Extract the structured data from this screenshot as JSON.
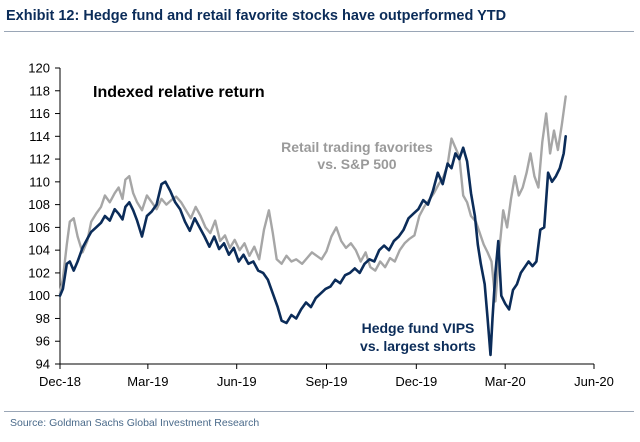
{
  "header": {
    "title": "Exhibit 12: Hedge fund and retail favorite stocks have outperformed YTD"
  },
  "footer": {
    "source": "Source: Goldman Sachs Global Investment Research"
  },
  "chart_data": {
    "type": "line",
    "title": "Indexed relative return",
    "xlabel": "",
    "ylabel": "",
    "ylim": [
      94,
      120
    ],
    "yticks": [
      94,
      96,
      98,
      100,
      102,
      104,
      106,
      108,
      110,
      112,
      114,
      116,
      118,
      120
    ],
    "xlim": [
      "2018-12-31",
      "2020-06-30"
    ],
    "xticks": [
      {
        "label": "Dec-18",
        "date": "2018-12-31"
      },
      {
        "label": "Mar-19",
        "date": "2019-03-31"
      },
      {
        "label": "Jun-19",
        "date": "2019-06-30"
      },
      {
        "label": "Sep-19",
        "date": "2019-09-30"
      },
      {
        "label": "Dec-19",
        "date": "2019-12-31"
      },
      {
        "label": "Mar-20",
        "date": "2020-03-31"
      },
      {
        "label": "Jun-20",
        "date": "2020-06-30"
      }
    ],
    "grid": false,
    "annotations": [
      {
        "series": "retail",
        "lines": [
          "Retail trading favorites",
          "vs. S&P 500"
        ]
      },
      {
        "series": "hedge",
        "lines": [
          "Hedge fund VIPS",
          "vs. largest shorts"
        ]
      }
    ],
    "colors": {
      "retail": "#a6a6a6",
      "hedge": "#0b2c59"
    },
    "series": [
      {
        "key": "retail",
        "points": [
          [
            "2018-12-31",
            100.2
          ],
          [
            "2019-01-03",
            101.5
          ],
          [
            "2019-01-07",
            104.5
          ],
          [
            "2019-01-10",
            106.5
          ],
          [
            "2019-01-14",
            106.8
          ],
          [
            "2019-01-18",
            105.2
          ],
          [
            "2019-01-23",
            103.8
          ],
          [
            "2019-01-28",
            104.8
          ],
          [
            "2019-02-01",
            106.5
          ],
          [
            "2019-02-06",
            107.2
          ],
          [
            "2019-02-11",
            107.8
          ],
          [
            "2019-02-15",
            108.8
          ],
          [
            "2019-02-20",
            108.2
          ],
          [
            "2019-02-25",
            109.0
          ],
          [
            "2019-03-01",
            109.5
          ],
          [
            "2019-03-05",
            108.5
          ],
          [
            "2019-03-08",
            110.2
          ],
          [
            "2019-03-12",
            110.5
          ],
          [
            "2019-03-16",
            109.0
          ],
          [
            "2019-03-20",
            108.2
          ],
          [
            "2019-03-25",
            107.5
          ],
          [
            "2019-03-30",
            108.8
          ],
          [
            "2019-04-04",
            108.2
          ],
          [
            "2019-04-09",
            107.6
          ],
          [
            "2019-04-14",
            108.5
          ],
          [
            "2019-04-19",
            108.0
          ],
          [
            "2019-04-24",
            108.4
          ],
          [
            "2019-04-29",
            108.7
          ],
          [
            "2019-05-04",
            108.2
          ],
          [
            "2019-05-09",
            107.5
          ],
          [
            "2019-05-14",
            106.8
          ],
          [
            "2019-05-19",
            107.8
          ],
          [
            "2019-05-24",
            107.0
          ],
          [
            "2019-05-29",
            106.0
          ],
          [
            "2019-06-03",
            105.5
          ],
          [
            "2019-06-08",
            106.6
          ],
          [
            "2019-06-13",
            104.8
          ],
          [
            "2019-06-18",
            105.3
          ],
          [
            "2019-06-23",
            104.2
          ],
          [
            "2019-06-28",
            104.9
          ],
          [
            "2019-07-03",
            104.0
          ],
          [
            "2019-07-08",
            104.6
          ],
          [
            "2019-07-13",
            103.5
          ],
          [
            "2019-07-18",
            104.3
          ],
          [
            "2019-07-23",
            103.2
          ],
          [
            "2019-07-28",
            105.8
          ],
          [
            "2019-08-02",
            107.5
          ],
          [
            "2019-08-06",
            105.5
          ],
          [
            "2019-08-10",
            103.2
          ],
          [
            "2019-08-15",
            102.8
          ],
          [
            "2019-08-20",
            103.5
          ],
          [
            "2019-08-25",
            103.0
          ],
          [
            "2019-08-30",
            103.2
          ],
          [
            "2019-09-05",
            102.8
          ],
          [
            "2019-09-10",
            103.3
          ],
          [
            "2019-09-15",
            103.8
          ],
          [
            "2019-09-20",
            103.5
          ],
          [
            "2019-09-25",
            103.2
          ],
          [
            "2019-09-30",
            103.9
          ],
          [
            "2019-10-05",
            105.2
          ],
          [
            "2019-10-10",
            106.0
          ],
          [
            "2019-10-15",
            104.8
          ],
          [
            "2019-10-20",
            104.2
          ],
          [
            "2019-10-25",
            104.6
          ],
          [
            "2019-10-30",
            104.0
          ],
          [
            "2019-11-04",
            103.0
          ],
          [
            "2019-11-09",
            103.8
          ],
          [
            "2019-11-14",
            102.5
          ],
          [
            "2019-11-19",
            102.2
          ],
          [
            "2019-11-24",
            103.0
          ],
          [
            "2019-11-29",
            102.5
          ],
          [
            "2019-12-04",
            103.3
          ],
          [
            "2019-12-09",
            103.0
          ],
          [
            "2019-12-14",
            104.0
          ],
          [
            "2019-12-19",
            104.6
          ],
          [
            "2019-12-24",
            105.0
          ],
          [
            "2019-12-29",
            105.3
          ],
          [
            "2020-01-03",
            107.0
          ],
          [
            "2020-01-08",
            107.8
          ],
          [
            "2020-01-13",
            108.4
          ],
          [
            "2020-01-18",
            109.0
          ],
          [
            "2020-01-23",
            109.8
          ],
          [
            "2020-01-28",
            110.5
          ],
          [
            "2020-02-01",
            111.5
          ],
          [
            "2020-02-05",
            113.8
          ],
          [
            "2020-02-09",
            113.0
          ],
          [
            "2020-02-13",
            112.2
          ],
          [
            "2020-02-17",
            108.8
          ],
          [
            "2020-02-21",
            108.2
          ],
          [
            "2020-02-25",
            107.0
          ],
          [
            "2020-03-01",
            106.5
          ],
          [
            "2020-03-05",
            105.5
          ],
          [
            "2020-03-09",
            104.5
          ],
          [
            "2020-03-13",
            103.8
          ],
          [
            "2020-03-17",
            103.0
          ],
          [
            "2020-03-21",
            99.5
          ],
          [
            "2020-03-25",
            104.0
          ],
          [
            "2020-03-29",
            107.5
          ],
          [
            "2020-04-02",
            106.0
          ],
          [
            "2020-04-06",
            108.5
          ],
          [
            "2020-04-10",
            110.5
          ],
          [
            "2020-04-14",
            108.8
          ],
          [
            "2020-04-18",
            109.5
          ],
          [
            "2020-04-22",
            110.8
          ],
          [
            "2020-04-26",
            112.5
          ],
          [
            "2020-04-30",
            110.5
          ],
          [
            "2020-05-04",
            109.5
          ],
          [
            "2020-05-08",
            113.5
          ],
          [
            "2020-05-12",
            116.0
          ],
          [
            "2020-05-16",
            112.5
          ],
          [
            "2020-05-20",
            114.5
          ],
          [
            "2020-05-24",
            112.8
          ],
          [
            "2020-05-28",
            115.0
          ],
          [
            "2020-06-01",
            117.5
          ]
        ]
      },
      {
        "key": "hedge",
        "points": [
          [
            "2018-12-31",
            100.0
          ],
          [
            "2019-01-03",
            100.6
          ],
          [
            "2019-01-07",
            102.8
          ],
          [
            "2019-01-10",
            103.0
          ],
          [
            "2019-01-14",
            102.2
          ],
          [
            "2019-01-18",
            103.0
          ],
          [
            "2019-01-23",
            104.2
          ],
          [
            "2019-01-28",
            105.0
          ],
          [
            "2019-02-01",
            105.6
          ],
          [
            "2019-02-06",
            106.0
          ],
          [
            "2019-02-11",
            106.4
          ],
          [
            "2019-02-15",
            107.0
          ],
          [
            "2019-02-20",
            106.6
          ],
          [
            "2019-02-25",
            107.6
          ],
          [
            "2019-03-01",
            107.2
          ],
          [
            "2019-03-05",
            106.7
          ],
          [
            "2019-03-08",
            107.8
          ],
          [
            "2019-03-12",
            108.2
          ],
          [
            "2019-03-16",
            107.5
          ],
          [
            "2019-03-20",
            106.6
          ],
          [
            "2019-03-25",
            105.2
          ],
          [
            "2019-03-30",
            107.0
          ],
          [
            "2019-04-04",
            107.4
          ],
          [
            "2019-04-09",
            108.0
          ],
          [
            "2019-04-14",
            109.8
          ],
          [
            "2019-04-18",
            110.0
          ],
          [
            "2019-04-23",
            109.2
          ],
          [
            "2019-04-28",
            108.2
          ],
          [
            "2019-05-03",
            107.6
          ],
          [
            "2019-05-08",
            106.5
          ],
          [
            "2019-05-13",
            105.7
          ],
          [
            "2019-05-18",
            106.8
          ],
          [
            "2019-05-23",
            106.0
          ],
          [
            "2019-05-28",
            105.2
          ],
          [
            "2019-06-02",
            104.3
          ],
          [
            "2019-06-07",
            105.2
          ],
          [
            "2019-06-12",
            104.1
          ],
          [
            "2019-06-17",
            104.6
          ],
          [
            "2019-06-22",
            103.6
          ],
          [
            "2019-06-27",
            104.2
          ],
          [
            "2019-07-02",
            103.0
          ],
          [
            "2019-07-07",
            103.6
          ],
          [
            "2019-07-12",
            102.8
          ],
          [
            "2019-07-17",
            103.0
          ],
          [
            "2019-07-22",
            102.2
          ],
          [
            "2019-07-27",
            102.0
          ],
          [
            "2019-08-01",
            101.4
          ],
          [
            "2019-08-06",
            100.2
          ],
          [
            "2019-08-11",
            99.0
          ],
          [
            "2019-08-15",
            97.8
          ],
          [
            "2019-08-20",
            97.6
          ],
          [
            "2019-08-25",
            98.3
          ],
          [
            "2019-08-30",
            98.0
          ],
          [
            "2019-09-04",
            98.8
          ],
          [
            "2019-09-09",
            99.4
          ],
          [
            "2019-09-14",
            99.0
          ],
          [
            "2019-09-19",
            99.8
          ],
          [
            "2019-09-24",
            100.2
          ],
          [
            "2019-09-29",
            100.6
          ],
          [
            "2019-10-04",
            100.8
          ],
          [
            "2019-10-09",
            101.4
          ],
          [
            "2019-10-14",
            101.1
          ],
          [
            "2019-10-19",
            101.8
          ],
          [
            "2019-10-24",
            102.0
          ],
          [
            "2019-10-29",
            102.4
          ],
          [
            "2019-11-03",
            102.0
          ],
          [
            "2019-11-08",
            102.8
          ],
          [
            "2019-11-13",
            103.2
          ],
          [
            "2019-11-18",
            103.0
          ],
          [
            "2019-11-23",
            104.0
          ],
          [
            "2019-11-28",
            104.4
          ],
          [
            "2019-12-03",
            104.0
          ],
          [
            "2019-12-08",
            104.8
          ],
          [
            "2019-12-13",
            105.2
          ],
          [
            "2019-12-18",
            105.8
          ],
          [
            "2019-12-23",
            106.8
          ],
          [
            "2019-12-28",
            107.2
          ],
          [
            "2020-01-02",
            107.6
          ],
          [
            "2020-01-07",
            108.4
          ],
          [
            "2020-01-12",
            108.0
          ],
          [
            "2020-01-17",
            109.2
          ],
          [
            "2020-01-22",
            110.8
          ],
          [
            "2020-01-27",
            109.8
          ],
          [
            "2020-02-01",
            111.6
          ],
          [
            "2020-02-05",
            111.2
          ],
          [
            "2020-02-09",
            112.5
          ],
          [
            "2020-02-13",
            112.0
          ],
          [
            "2020-02-17",
            113.0
          ],
          [
            "2020-02-21",
            111.8
          ],
          [
            "2020-02-25",
            109.0
          ],
          [
            "2020-02-29",
            107.0
          ],
          [
            "2020-03-03",
            104.5
          ],
          [
            "2020-03-06",
            102.8
          ],
          [
            "2020-03-10",
            101.0
          ],
          [
            "2020-03-13",
            98.0
          ],
          [
            "2020-03-16",
            94.8
          ],
          [
            "2020-03-18",
            98.0
          ],
          [
            "2020-03-21",
            102.0
          ],
          [
            "2020-03-24",
            104.8
          ],
          [
            "2020-03-27",
            100.0
          ],
          [
            "2020-03-31",
            99.3
          ],
          [
            "2020-04-04",
            98.8
          ],
          [
            "2020-04-08",
            100.5
          ],
          [
            "2020-04-12",
            101.0
          ],
          [
            "2020-04-16",
            102.0
          ],
          [
            "2020-04-20",
            102.5
          ],
          [
            "2020-04-24",
            103.0
          ],
          [
            "2020-04-28",
            102.6
          ],
          [
            "2020-05-02",
            103.0
          ],
          [
            "2020-05-06",
            105.8
          ],
          [
            "2020-05-10",
            106.0
          ],
          [
            "2020-05-14",
            110.8
          ],
          [
            "2020-05-18",
            110.0
          ],
          [
            "2020-05-22",
            110.5
          ],
          [
            "2020-05-26",
            111.2
          ],
          [
            "2020-05-30",
            112.5
          ],
          [
            "2020-06-01",
            114.0
          ]
        ]
      }
    ]
  }
}
